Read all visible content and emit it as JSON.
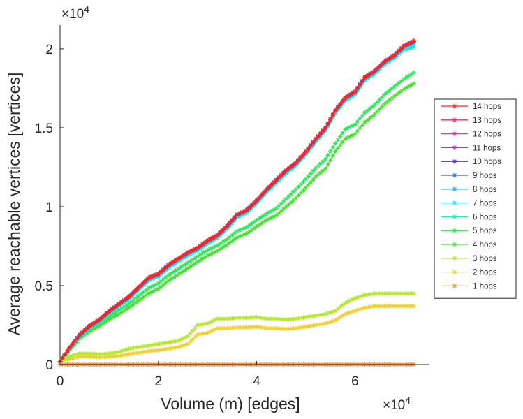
{
  "chart_data": {
    "type": "line",
    "title": "",
    "xlabel": "Volume (m) [edges]",
    "ylabel": "Average reachable vertices [vertices]",
    "x_exponent_label": "×10",
    "x_exponent": "4",
    "y_exponent_label": "×10",
    "y_exponent": "4",
    "xlim": [
      0,
      75000
    ],
    "ylim": [
      0,
      21500
    ],
    "xticks": [
      0,
      20000,
      40000,
      60000
    ],
    "xtick_labels": [
      "0",
      "2",
      "4",
      "6"
    ],
    "yticks": [
      0,
      5000,
      10000,
      15000,
      20000
    ],
    "ytick_labels": [
      "0",
      "0.5",
      "1",
      "1.5",
      "2"
    ],
    "grid": false,
    "legend_position": "right",
    "marker": "asterisk",
    "x": [
      0,
      2000,
      4000,
      6000,
      8000,
      10000,
      12000,
      14000,
      16000,
      18000,
      20000,
      22000,
      24000,
      26000,
      28000,
      30000,
      32000,
      34000,
      36000,
      38000,
      40000,
      42000,
      44000,
      46000,
      48000,
      50000,
      52000,
      54000,
      56000,
      58000,
      60000,
      62000,
      64000,
      66000,
      68000,
      70000,
      72000
    ],
    "series": [
      {
        "name": "14 hops",
        "color": "#f0291e",
        "values": [
          200,
          1100,
          1900,
          2450,
          2850,
          3400,
          3850,
          4300,
          4900,
          5500,
          5750,
          6300,
          6700,
          7100,
          7400,
          7850,
          8200,
          8800,
          9500,
          9800,
          10400,
          11100,
          11700,
          12300,
          12800,
          13500,
          14300,
          15000,
          16100,
          16900,
          17300,
          18200,
          18600,
          19200,
          19600,
          20200,
          20500
        ]
      },
      {
        "name": "13 hops",
        "color": "#f02a6c",
        "values": [
          200,
          1100,
          1900,
          2450,
          2850,
          3400,
          3850,
          4300,
          4900,
          5500,
          5750,
          6300,
          6700,
          7100,
          7400,
          7850,
          8200,
          8800,
          9500,
          9800,
          10400,
          11100,
          11700,
          12300,
          12800,
          13500,
          14300,
          15000,
          16100,
          16900,
          17300,
          18200,
          18600,
          19200,
          19600,
          20200,
          20500
        ]
      },
      {
        "name": "12 hops",
        "color": "#e42bc4",
        "values": [
          200,
          1100,
          1900,
          2450,
          2850,
          3400,
          3850,
          4300,
          4900,
          5500,
          5750,
          6300,
          6700,
          7100,
          7400,
          7850,
          8200,
          8800,
          9500,
          9800,
          10400,
          11100,
          11700,
          12300,
          12800,
          13500,
          14300,
          15000,
          16100,
          16900,
          17300,
          18200,
          18600,
          19200,
          19600,
          20200,
          20500
        ]
      },
      {
        "name": "11 hops",
        "color": "#b12ef0",
        "values": [
          200,
          1100,
          1900,
          2450,
          2850,
          3400,
          3850,
          4300,
          4900,
          5500,
          5750,
          6300,
          6700,
          7100,
          7400,
          7850,
          8200,
          8800,
          9500,
          9800,
          10400,
          11100,
          11700,
          12300,
          12800,
          13500,
          14300,
          15000,
          16100,
          16900,
          17300,
          18200,
          18600,
          19200,
          19600,
          20200,
          20500
        ]
      },
      {
        "name": "10 hops",
        "color": "#5a32e6",
        "values": [
          200,
          1100,
          1900,
          2450,
          2850,
          3400,
          3850,
          4300,
          4900,
          5500,
          5750,
          6300,
          6700,
          7100,
          7400,
          7850,
          8200,
          8800,
          9500,
          9800,
          10400,
          11100,
          11700,
          12300,
          12800,
          13500,
          14300,
          15000,
          16100,
          16900,
          17300,
          18200,
          18600,
          19200,
          19600,
          20200,
          20500
        ]
      },
      {
        "name": "9 hops",
        "color": "#2f5ef0",
        "values": [
          200,
          1100,
          1880,
          2430,
          2830,
          3380,
          3830,
          4280,
          4880,
          5480,
          5730,
          6280,
          6680,
          7080,
          7380,
          7830,
          8180,
          8780,
          9480,
          9780,
          10380,
          11080,
          11680,
          12280,
          12780,
          13480,
          14280,
          14980,
          16080,
          16880,
          17280,
          18180,
          18580,
          19180,
          19580,
          20180,
          20460
        ]
      },
      {
        "name": "8 hops",
        "color": "#2d9ef0",
        "values": [
          200,
          1080,
          1860,
          2400,
          2800,
          3350,
          3800,
          4250,
          4850,
          5450,
          5700,
          6250,
          6650,
          7050,
          7350,
          7800,
          8150,
          8750,
          9450,
          9750,
          10350,
          11050,
          11650,
          12250,
          12750,
          13450,
          14250,
          14950,
          16050,
          16850,
          17250,
          18150,
          18550,
          19150,
          19550,
          20150,
          20400
        ]
      },
      {
        "name": "7 hops",
        "color": "#2edae6",
        "values": [
          200,
          1060,
          1820,
          2350,
          2750,
          3300,
          3740,
          4180,
          4780,
          5380,
          5620,
          6170,
          6570,
          6970,
          7270,
          7720,
          8070,
          8670,
          9370,
          9670,
          10270,
          10970,
          11570,
          12170,
          12670,
          13370,
          14170,
          14870,
          15970,
          16770,
          17170,
          18070,
          18470,
          19070,
          19470,
          20050,
          20250
        ]
      },
      {
        "name": "6 hops",
        "color": "#2ee6a8",
        "values": [
          200,
          1040,
          1780,
          2300,
          2700,
          3240,
          3680,
          4120,
          4720,
          5320,
          5560,
          6110,
          6510,
          6910,
          7210,
          7660,
          8010,
          8610,
          9310,
          9610,
          10210,
          10910,
          11510,
          12110,
          12610,
          13310,
          14110,
          14810,
          15910,
          16710,
          17110,
          18010,
          18410,
          19010,
          19410,
          19950,
          20100
        ]
      },
      {
        "name": "5 hops",
        "color": "#2ee65c",
        "values": [
          200,
          1000,
          1750,
          2250,
          2600,
          3050,
          3450,
          3850,
          4350,
          4850,
          5150,
          5650,
          6050,
          6450,
          6850,
          7250,
          7550,
          7950,
          8450,
          8700,
          9150,
          9550,
          9900,
          10500,
          11100,
          11750,
          12450,
          13000,
          14000,
          14900,
          15200,
          15950,
          16450,
          17100,
          17600,
          18100,
          18500
        ]
      },
      {
        "name": "4 hops",
        "color": "#45e02e",
        "values": [
          200,
          950,
          1650,
          2100,
          2450,
          2850,
          3200,
          3600,
          4050,
          4500,
          4800,
          5300,
          5700,
          6100,
          6500,
          6900,
          7200,
          7600,
          8050,
          8300,
          8750,
          9150,
          9450,
          10000,
          10550,
          11200,
          11900,
          12400,
          13500,
          14300,
          14600,
          15350,
          15850,
          16500,
          17000,
          17450,
          17800
        ]
      },
      {
        "name": "3 hops",
        "color": "#b6e62e",
        "values": [
          200,
          500,
          700,
          700,
          650,
          700,
          800,
          1000,
          1100,
          1200,
          1300,
          1400,
          1500,
          1800,
          2500,
          2600,
          2900,
          2900,
          2950,
          2950,
          3000,
          2900,
          2900,
          2850,
          2900,
          3000,
          3100,
          3200,
          3400,
          3900,
          4200,
          4400,
          4500,
          4500,
          4500,
          4500,
          4500
        ]
      },
      {
        "name": "2 hops",
        "color": "#f0d02e",
        "values": [
          200,
          350,
          500,
          500,
          450,
          500,
          550,
          650,
          750,
          850,
          900,
          1000,
          1100,
          1300,
          1900,
          2000,
          2300,
          2300,
          2350,
          2350,
          2400,
          2300,
          2300,
          2250,
          2300,
          2400,
          2500,
          2600,
          2800,
          3200,
          3400,
          3600,
          3700,
          3700,
          3700,
          3700,
          3700
        ]
      },
      {
        "name": "1 hops",
        "color": "#f08a2e",
        "values": [
          2,
          2,
          2,
          2,
          2,
          2,
          2,
          2,
          2,
          2,
          2,
          2,
          2,
          2,
          2,
          2,
          2,
          2,
          2,
          2,
          2,
          2,
          2,
          2,
          2,
          2,
          2,
          2,
          2,
          2,
          2,
          2,
          2,
          2,
          2,
          2,
          2
        ]
      }
    ]
  }
}
